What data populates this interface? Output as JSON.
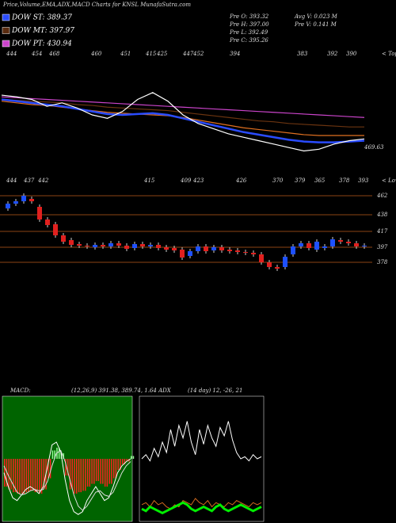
{
  "header": {
    "title": "Price,Volume,EMA,ADX,MACD Charts for KNSL MunafaSutra.com",
    "legend": [
      {
        "text": "DOW ST: 389.37",
        "color": "#2a4cff"
      },
      {
        "text": "DOW MT: 397.97",
        "color": "#5a2c10"
      },
      {
        "text": "DOW PT: 430.94",
        "color": "#cc44cc"
      }
    ],
    "info": [
      "Pre O: 393.32",
      "Pre H: 397.00",
      "Pre L: 392.49",
      "Pre C: 395.26",
      "Avg V: 0.023 M",
      "Pre V: 0.141 M"
    ]
  },
  "chart_data": [
    {
      "type": "line",
      "annotation": "469.63",
      "ylim": [
        360,
        480
      ],
      "tops": [
        "444",
        "454",
        "468",
        "460",
        "451",
        "415",
        "425",
        "447",
        "452",
        "394",
        "383",
        "392",
        "390"
      ],
      "tops_title": "< Tops",
      "lows": [
        "444",
        "437",
        "442",
        "415",
        "409",
        "423",
        "426",
        "370",
        "379",
        "365",
        "378",
        "393"
      ],
      "lows_title": "< Lows",
      "series": [
        {
          "color": "#cc44cc",
          "values": [
            441,
            440,
            439,
            438,
            437,
            436,
            435,
            434,
            433,
            432,
            431,
            430,
            429,
            428,
            427,
            426,
            425,
            424,
            423,
            422,
            421,
            420,
            419,
            418,
            417
          ]
        },
        {
          "color": "#6b3410",
          "values": [
            438,
            437,
            436,
            435,
            434,
            432,
            431,
            429,
            428,
            427,
            426,
            425,
            423,
            421,
            419,
            417,
            415,
            413,
            412,
            410,
            409,
            408,
            407,
            406,
            406
          ]
        },
        {
          "color": "#e07020",
          "values": [
            436,
            434,
            432,
            431,
            429,
            427,
            425,
            423,
            422,
            421,
            420,
            419,
            417,
            414,
            411,
            408,
            405,
            403,
            401,
            399,
            397,
            396,
            396,
            396,
            396
          ]
        },
        {
          "color": "#2a4cff",
          "values": [
            438,
            436,
            434,
            432,
            430,
            427,
            424,
            421,
            420,
            421,
            422,
            420,
            416,
            412,
            408,
            404,
            400,
            397,
            394,
            391,
            389,
            388,
            388,
            389,
            390
          ]
        },
        {
          "color": "#ffffff",
          "values": [
            443,
            441,
            438,
            430,
            434,
            428,
            420,
            416,
            424,
            438,
            446,
            436,
            420,
            410,
            404,
            398,
            394,
            390,
            386,
            382,
            378,
            380,
            386,
            390,
            392
          ]
        }
      ]
    },
    {
      "type": "candlestick",
      "ylim": [
        349,
        472
      ],
      "yticks": [
        462,
        438,
        417,
        397,
        378
      ],
      "up_color": "#1e50ff",
      "down_color": "#e0201e",
      "level_color": "#8b4513",
      "open": [
        446,
        452,
        455,
        458,
        448,
        432,
        426,
        412,
        406,
        401,
        399,
        397,
        400,
        398,
        402,
        399,
        396,
        401,
        398,
        400,
        397,
        396,
        394,
        386,
        392,
        398,
        393,
        397,
        394,
        393,
        391,
        390,
        388,
        378,
        372,
        372,
        388,
        398,
        402,
        394,
        396,
        398,
        406,
        404,
        402,
        398
      ],
      "close": [
        452,
        455,
        462,
        455,
        432,
        425,
        412,
        404,
        400,
        399,
        398,
        400,
        398,
        402,
        399,
        395,
        401,
        398,
        400,
        396,
        394,
        393,
        384,
        392,
        398,
        392,
        397,
        393,
        392,
        391,
        390,
        388,
        378,
        372,
        370,
        385,
        398,
        402,
        396,
        404,
        398,
        407,
        404,
        402,
        398,
        399
      ],
      "high": [
        455,
        458,
        465,
        461,
        451,
        435,
        429,
        415,
        409,
        404,
        402,
        403,
        403,
        405,
        405,
        402,
        404,
        404,
        403,
        403,
        400,
        399,
        397,
        395,
        401,
        401,
        400,
        400,
        397,
        396,
        394,
        393,
        391,
        381,
        375,
        388,
        401,
        405,
        405,
        407,
        401,
        410,
        409,
        407,
        405,
        402
      ],
      "low": [
        443,
        449,
        452,
        452,
        429,
        422,
        409,
        401,
        397,
        396,
        395,
        394,
        395,
        395,
        396,
        392,
        393,
        395,
        395,
        393,
        391,
        390,
        381,
        383,
        389,
        389,
        390,
        390,
        389,
        388,
        387,
        385,
        375,
        369,
        367,
        369,
        385,
        395,
        393,
        391,
        393,
        395,
        401,
        399,
        395,
        395
      ]
    },
    {
      "type": "macd",
      "label": "MACD:",
      "params": "(12,26,9) 391.38, 389.74, 1.64 ADX",
      "ylim": [
        -45,
        45
      ],
      "bg": "#006400",
      "neg_color": "#ff2020",
      "pos_color": "#90ff90",
      "histogram": [
        -20,
        -22,
        -24,
        -25,
        -25,
        -24,
        -23,
        -24,
        -25,
        -22,
        -14,
        6,
        8,
        4,
        -12,
        -22,
        -25,
        -24,
        -23,
        -20,
        -18,
        -16,
        -18,
        -20,
        -18,
        -14,
        -8,
        -4,
        -2,
        2
      ],
      "series": [
        {
          "color": "#ffffff",
          "values": [
            -10,
            -20,
            -28,
            -30,
            -26,
            -22,
            -20,
            -22,
            -25,
            -20,
            -5,
            10,
            12,
            5,
            -15,
            -30,
            -38,
            -40,
            -38,
            -30,
            -25,
            -20,
            -25,
            -30,
            -28,
            -20,
            -10,
            -5,
            -2,
            0
          ]
        },
        {
          "color": "#dddddd",
          "values": [
            -5,
            -12,
            -18,
            -24,
            -26,
            -25,
            -23,
            -22,
            -23,
            -22,
            -16,
            -5,
            4,
            6,
            -2,
            -14,
            -26,
            -34,
            -37,
            -34,
            -29,
            -24,
            -23,
            -26,
            -27,
            -24,
            -17,
            -10,
            -5,
            -2
          ]
        }
      ]
    },
    {
      "type": "adx",
      "label": "(14 day) 12, -26, 21",
      "ylim": [
        0,
        60
      ],
      "border": "#ffffff",
      "series": [
        {
          "color": "#ffffff",
          "width": 1,
          "values": [
            30,
            32,
            29,
            35,
            31,
            38,
            33,
            44,
            36,
            46,
            40,
            48,
            38,
            32,
            44,
            37,
            46,
            40,
            36,
            45,
            41,
            48,
            39,
            33,
            30,
            31,
            29,
            32,
            30,
            31
          ]
        },
        {
          "color": "#d2691e",
          "width": 1,
          "values": [
            8,
            9,
            7,
            10,
            8,
            9,
            7,
            6,
            8,
            7,
            10,
            9,
            8,
            11,
            9,
            8,
            10,
            7,
            9,
            8,
            7,
            9,
            8,
            10,
            9,
            8,
            7,
            9,
            8,
            9
          ]
        },
        {
          "color": "#00ee00",
          "width": 3,
          "values": [
            6,
            5,
            7,
            6,
            5,
            4,
            5,
            6,
            7,
            8,
            9,
            8,
            6,
            5,
            6,
            7,
            6,
            5,
            7,
            8,
            6,
            5,
            6,
            7,
            8,
            7,
            6,
            5,
            6,
            7
          ]
        }
      ]
    }
  ]
}
